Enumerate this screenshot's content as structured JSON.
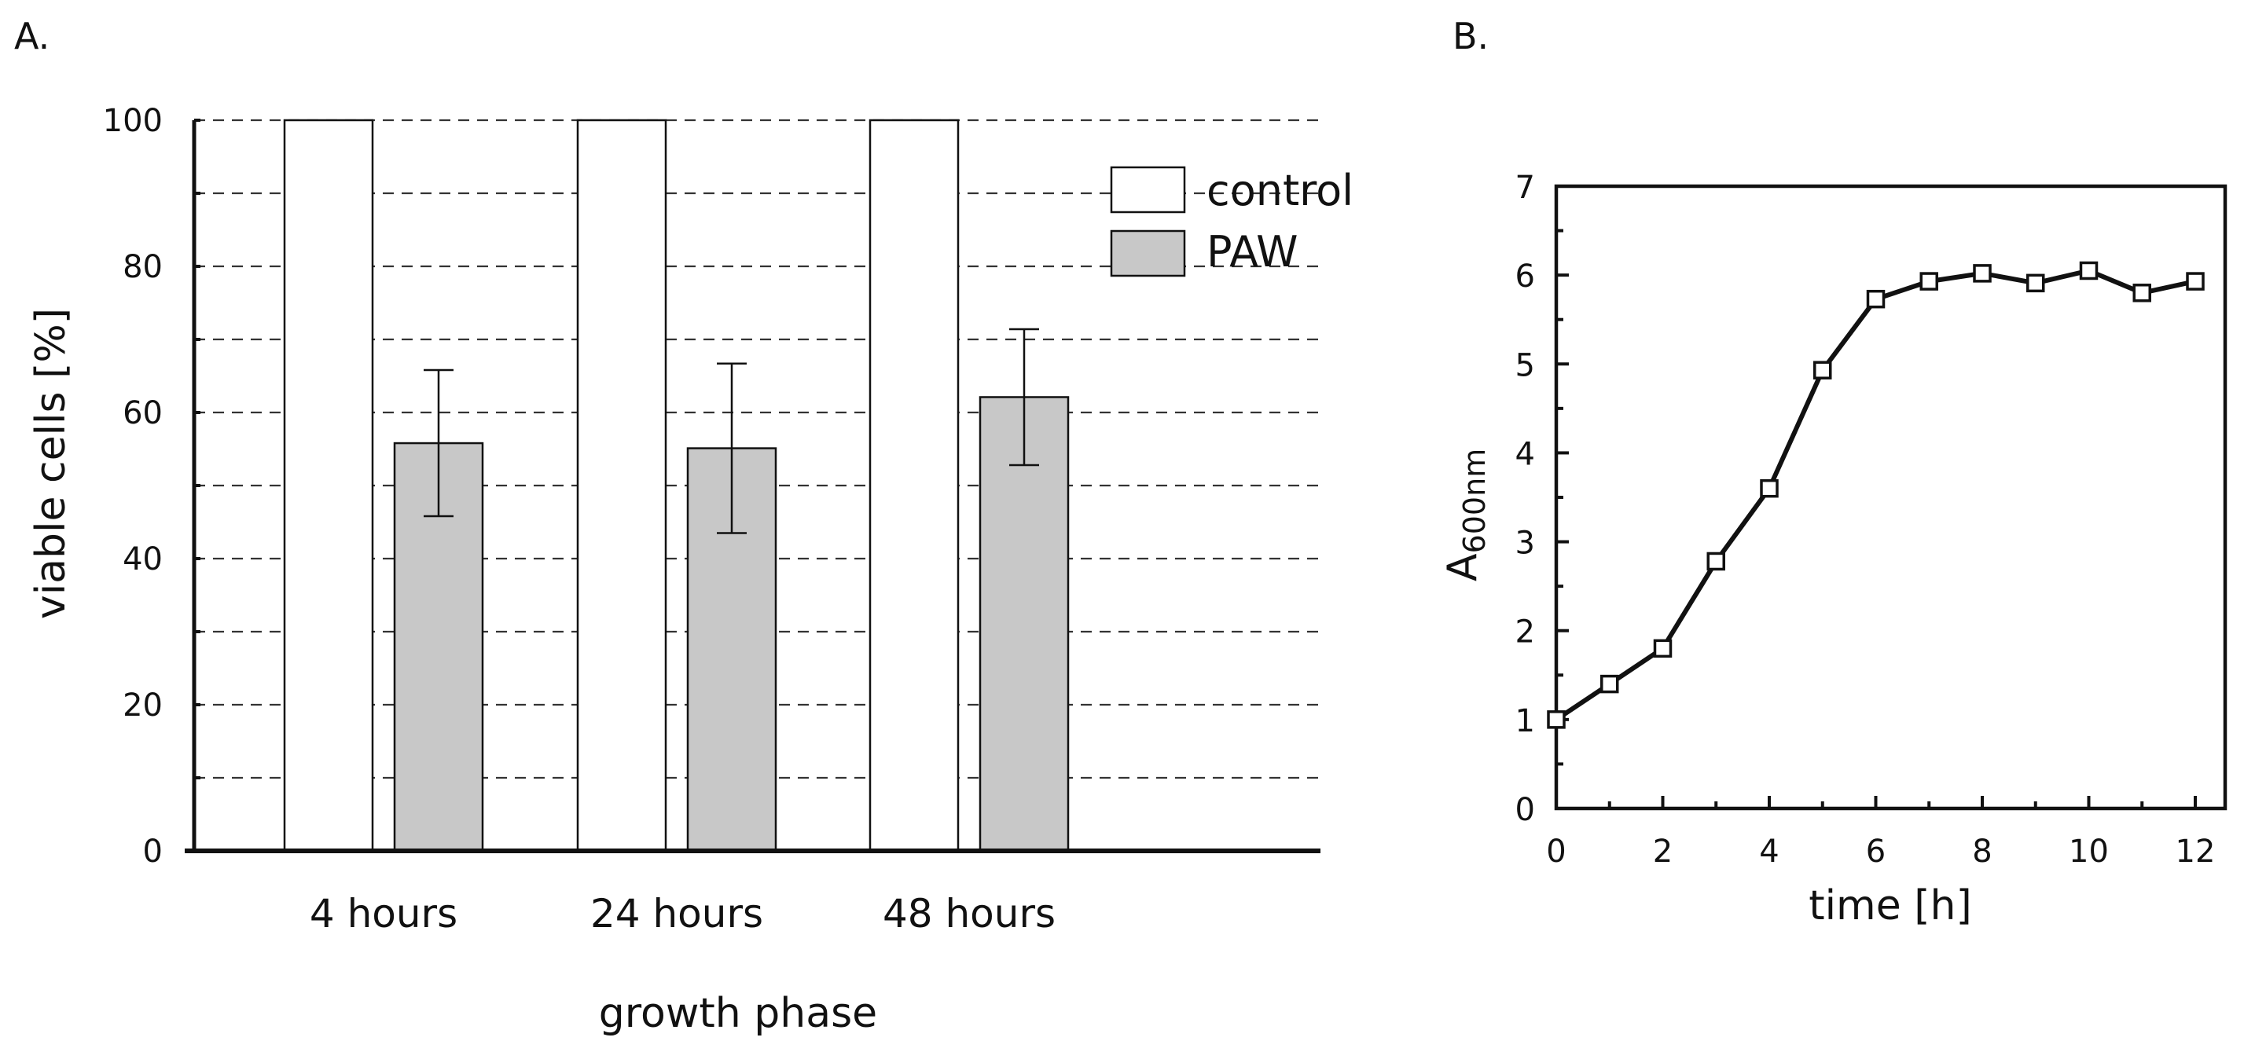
{
  "panels": {
    "a": {
      "label": "A."
    },
    "b": {
      "label": "B."
    }
  },
  "chart_data": [
    {
      "type": "bar",
      "panel": "A.",
      "title": "",
      "xlabel": "growth phase",
      "ylabel": "viable cells [%]",
      "ylim": [
        0,
        100
      ],
      "yticks": [
        0,
        20,
        40,
        60,
        80,
        100
      ],
      "grid_minor_step": 10,
      "grid": true,
      "legend_position": "top-right",
      "categories": [
        "4 hours",
        "24 hours",
        "48 hours"
      ],
      "series": [
        {
          "name": "control",
          "color": "#ffffff",
          "values": [
            100,
            100,
            100
          ],
          "errors": [
            0,
            0,
            0
          ]
        },
        {
          "name": "PAW",
          "color": "#c8c8c8",
          "values": [
            55.8,
            55.1,
            62.1
          ],
          "errors": [
            10.0,
            11.6,
            9.3
          ]
        }
      ]
    },
    {
      "type": "line",
      "panel": "B.",
      "title": "",
      "xlabel": "time [h]",
      "ylabel": "A",
      "ylabel_subscript": "600nm",
      "xlim": [
        0,
        12
      ],
      "ylim": [
        0,
        7
      ],
      "xticks": [
        0,
        2,
        4,
        6,
        8,
        10,
        12
      ],
      "yticks": [
        0,
        1,
        2,
        3,
        4,
        5,
        6,
        7
      ],
      "grid": false,
      "series": [
        {
          "name": "A600nm",
          "marker": "open-square",
          "x": [
            0,
            1,
            2,
            3,
            4,
            5,
            6,
            7,
            8,
            9,
            10,
            11,
            12
          ],
          "y": [
            1.0,
            1.4,
            1.8,
            2.78,
            3.6,
            4.93,
            5.73,
            5.93,
            6.02,
            5.91,
            6.05,
            5.8,
            5.93
          ]
        }
      ]
    }
  ]
}
